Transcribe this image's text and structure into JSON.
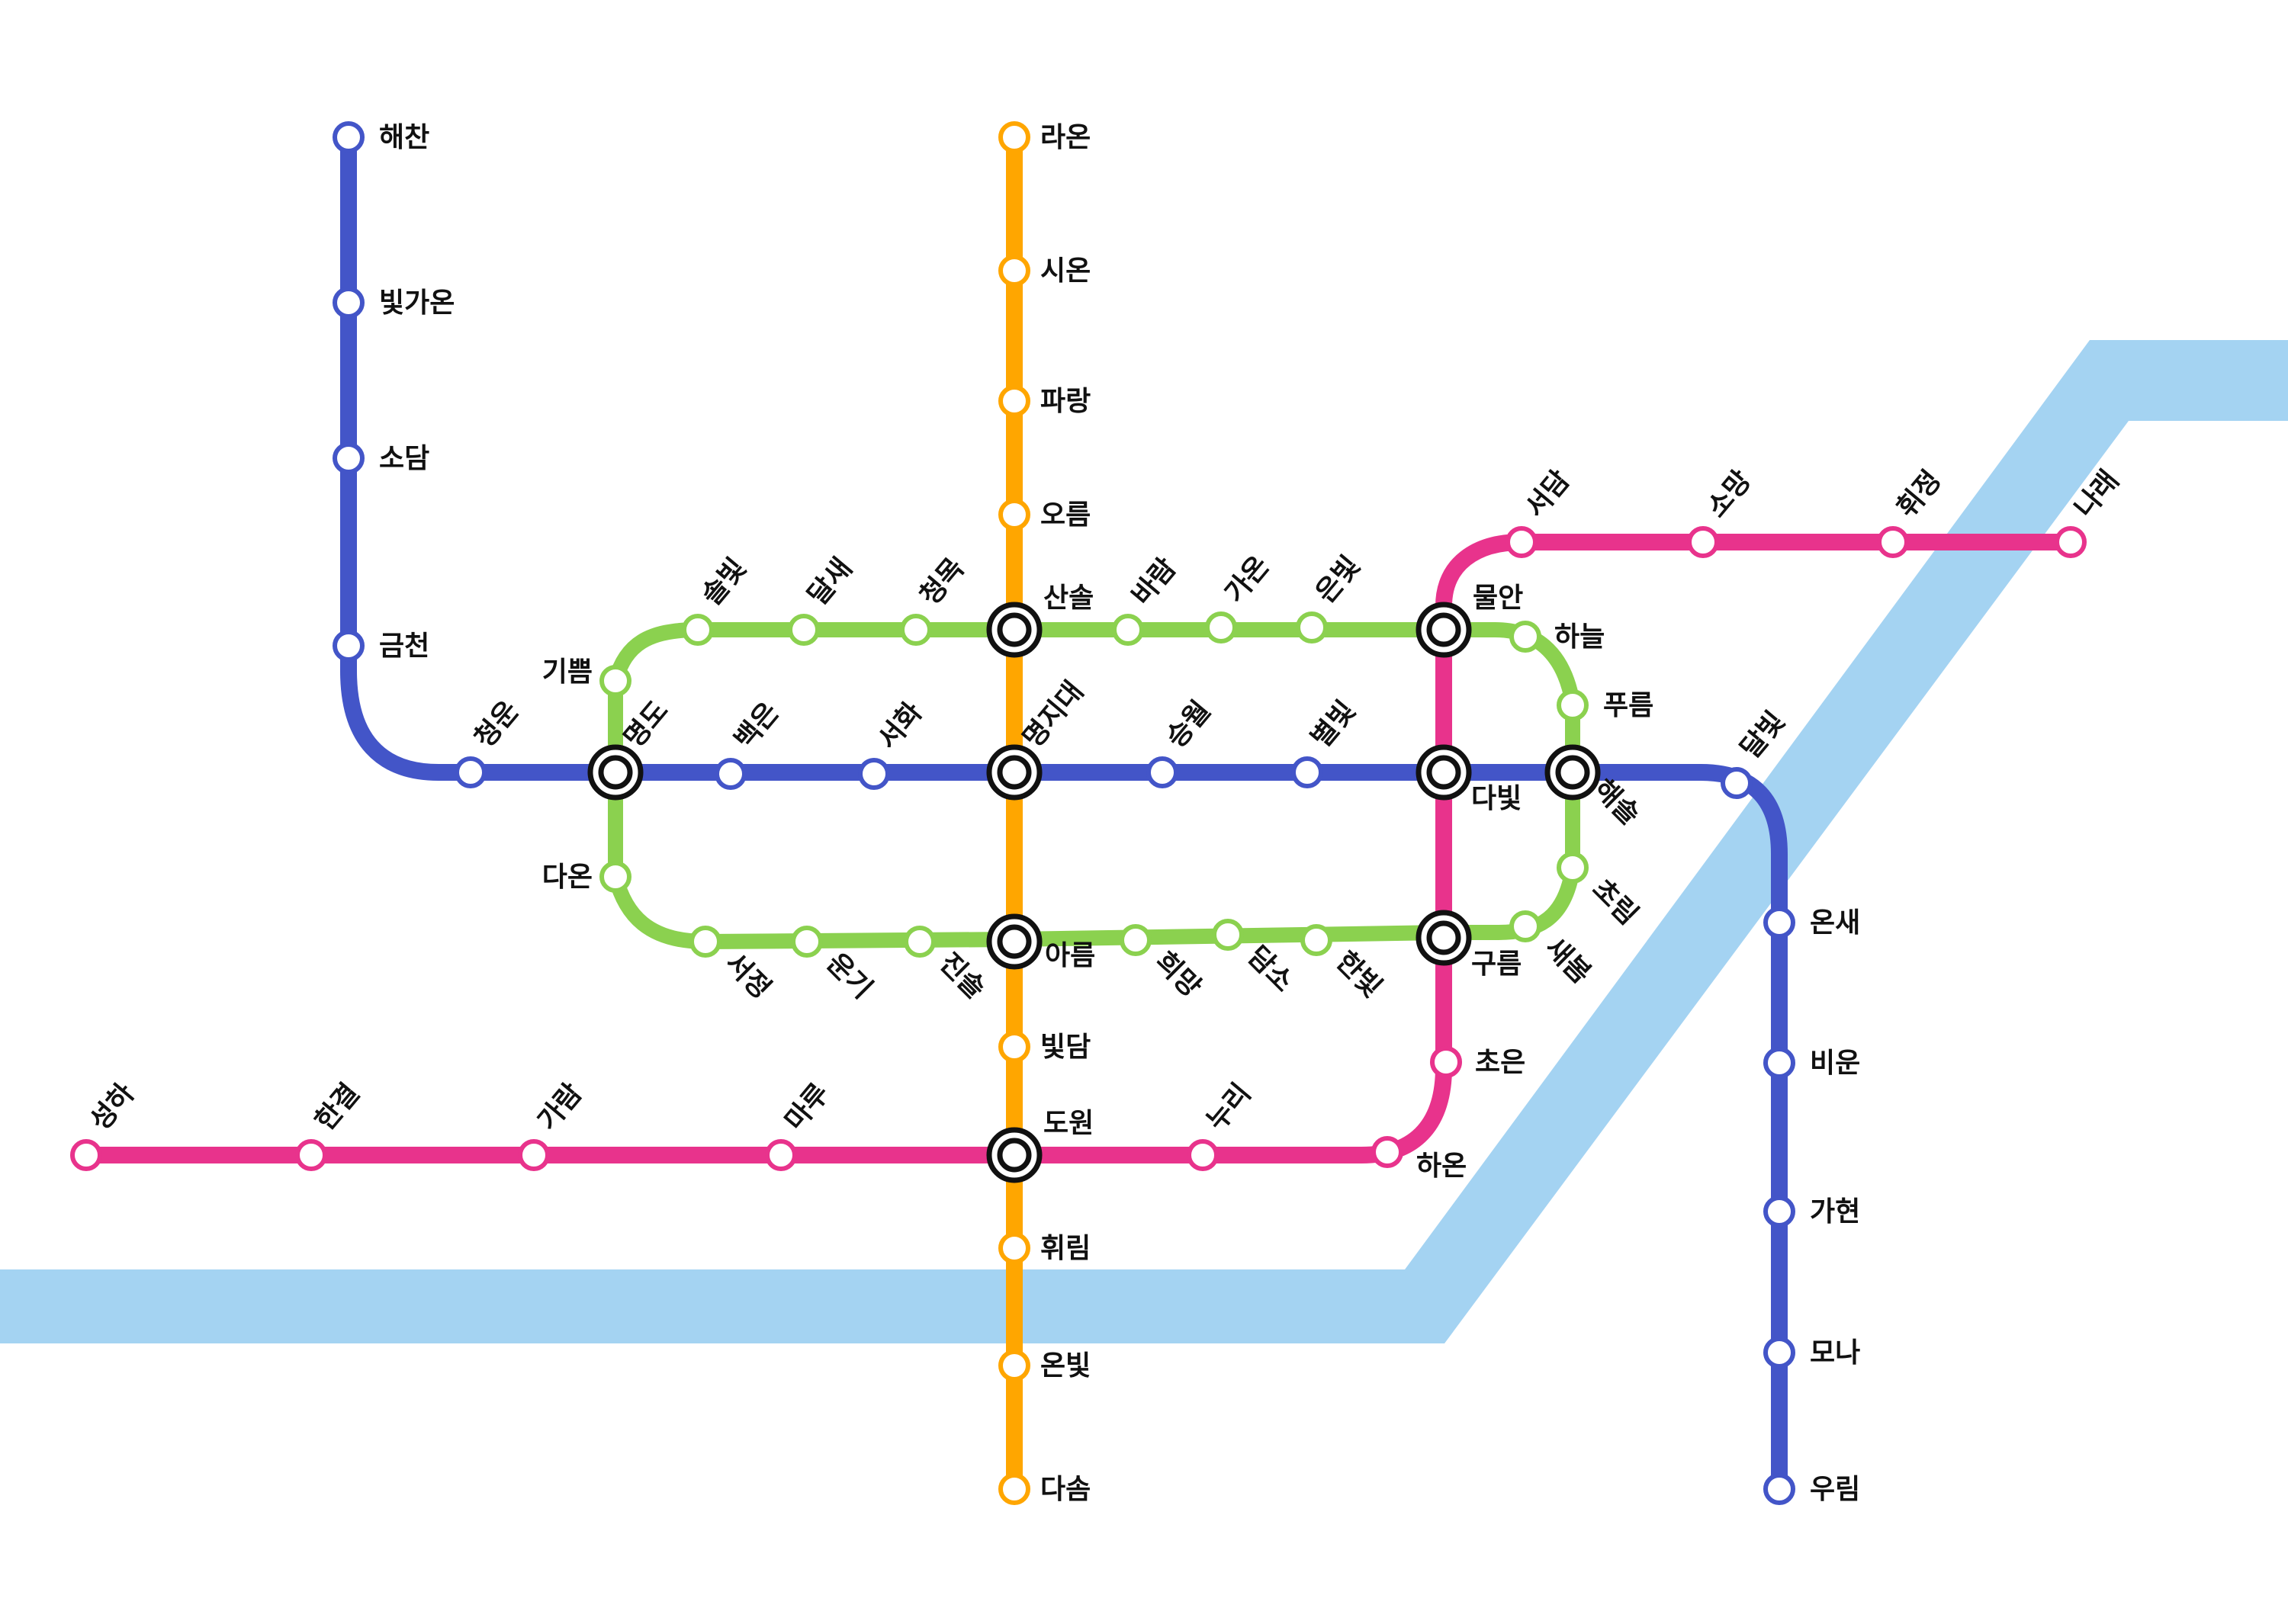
{
  "colors": {
    "blue": "#4355c8",
    "orange": "#ffa600",
    "green": "#8bd14f",
    "pink": "#e8338c",
    "river": "#a4d3f2",
    "transfer": "#111111",
    "background": "#ffffff"
  },
  "lines": [
    {
      "id": "blue",
      "color_key": "blue"
    },
    {
      "id": "orange",
      "color_key": "orange"
    },
    {
      "id": "green",
      "color_key": "green"
    },
    {
      "id": "pink",
      "color_key": "pink"
    }
  ],
  "stations": [
    {
      "id": "haechan",
      "name": "해찬",
      "line": "blue"
    },
    {
      "id": "bitgaon",
      "name": "빛가온",
      "line": "blue"
    },
    {
      "id": "sodam",
      "name": "소담",
      "line": "blue"
    },
    {
      "id": "geumcheon",
      "name": "금천",
      "line": "blue"
    },
    {
      "id": "cheongun",
      "name": "청운",
      "line": "blue"
    },
    {
      "id": "baegeun",
      "name": "백은",
      "line": "blue"
    },
    {
      "id": "seohwa",
      "name": "서화",
      "line": "blue"
    },
    {
      "id": "seungwol",
      "name": "승월",
      "line": "blue"
    },
    {
      "id": "byeolbit",
      "name": "별빛",
      "line": "blue"
    },
    {
      "id": "dalbit",
      "name": "달빛",
      "line": "blue"
    },
    {
      "id": "onsae",
      "name": "온새",
      "line": "blue"
    },
    {
      "id": "bieun",
      "name": "비운",
      "line": "blue"
    },
    {
      "id": "gahyeon",
      "name": "가현",
      "line": "blue"
    },
    {
      "id": "mona",
      "name": "모나",
      "line": "blue"
    },
    {
      "id": "urim",
      "name": "우림",
      "line": "blue"
    },
    {
      "id": "raon",
      "name": "라온",
      "line": "orange"
    },
    {
      "id": "sion",
      "name": "시온",
      "line": "orange"
    },
    {
      "id": "parang",
      "name": "파랑",
      "line": "orange"
    },
    {
      "id": "oreum",
      "name": "오름",
      "line": "orange"
    },
    {
      "id": "bitdam",
      "name": "빛담",
      "line": "orange"
    },
    {
      "id": "hwirim",
      "name": "휘림",
      "line": "orange"
    },
    {
      "id": "onbit",
      "name": "온빛",
      "line": "orange"
    },
    {
      "id": "dasom",
      "name": "다솜",
      "line": "orange"
    },
    {
      "id": "solbit",
      "name": "솔빛",
      "line": "green"
    },
    {
      "id": "dalsae",
      "name": "달새",
      "line": "green"
    },
    {
      "id": "cheongmok",
      "name": "청목",
      "line": "green"
    },
    {
      "id": "baram",
      "name": "바람",
      "line": "green"
    },
    {
      "id": "gaon",
      "name": "가온",
      "line": "green"
    },
    {
      "id": "eunbit",
      "name": "은빛",
      "line": "green"
    },
    {
      "id": "haneul",
      "name": "하늘",
      "line": "green"
    },
    {
      "id": "pureum",
      "name": "푸름",
      "line": "green"
    },
    {
      "id": "chorim",
      "name": "초림",
      "line": "green"
    },
    {
      "id": "saebom",
      "name": "새봄",
      "line": "green"
    },
    {
      "id": "hanbit",
      "name": "한빛",
      "line": "green"
    },
    {
      "id": "damso",
      "name": "담소",
      "line": "green"
    },
    {
      "id": "huimang",
      "name": "희망",
      "line": "green"
    },
    {
      "id": "jinsol",
      "name": "진솔",
      "line": "green"
    },
    {
      "id": "ungi",
      "name": "운기",
      "line": "green"
    },
    {
      "id": "seojeong",
      "name": "서정",
      "line": "green"
    },
    {
      "id": "daon",
      "name": "다온",
      "line": "green"
    },
    {
      "id": "gippeum",
      "name": "기쁨",
      "line": "green"
    },
    {
      "id": "seongha",
      "name": "성하",
      "line": "pink"
    },
    {
      "id": "hangyeol",
      "name": "한결",
      "line": "pink"
    },
    {
      "id": "garam",
      "name": "가람",
      "line": "pink"
    },
    {
      "id": "maru",
      "name": "마루",
      "line": "pink"
    },
    {
      "id": "nuri",
      "name": "누리",
      "line": "pink"
    },
    {
      "id": "haon",
      "name": "하온",
      "line": "pink"
    },
    {
      "id": "choeun",
      "name": "초은",
      "line": "pink"
    },
    {
      "id": "seodam",
      "name": "서담",
      "line": "pink"
    },
    {
      "id": "somang",
      "name": "소망",
      "line": "pink"
    },
    {
      "id": "hwijeong",
      "name": "휘정",
      "line": "pink"
    },
    {
      "id": "narae",
      "name": "나래",
      "line": "pink"
    },
    {
      "id": "myeongdo",
      "name": "명도",
      "transfer": true
    },
    {
      "id": "sansol",
      "name": "산솔",
      "transfer": true
    },
    {
      "id": "myeongjidae",
      "name": "명지대",
      "transfer": true
    },
    {
      "id": "areum",
      "name": "아름",
      "transfer": true
    },
    {
      "id": "dowon",
      "name": "도원",
      "transfer": true
    },
    {
      "id": "muran",
      "name": "물안",
      "transfer": true
    },
    {
      "id": "dabit",
      "name": "다빛",
      "transfer": true
    },
    {
      "id": "gureum",
      "name": "구름",
      "transfer": true
    },
    {
      "id": "haesol",
      "name": "해솔",
      "transfer": true
    }
  ]
}
